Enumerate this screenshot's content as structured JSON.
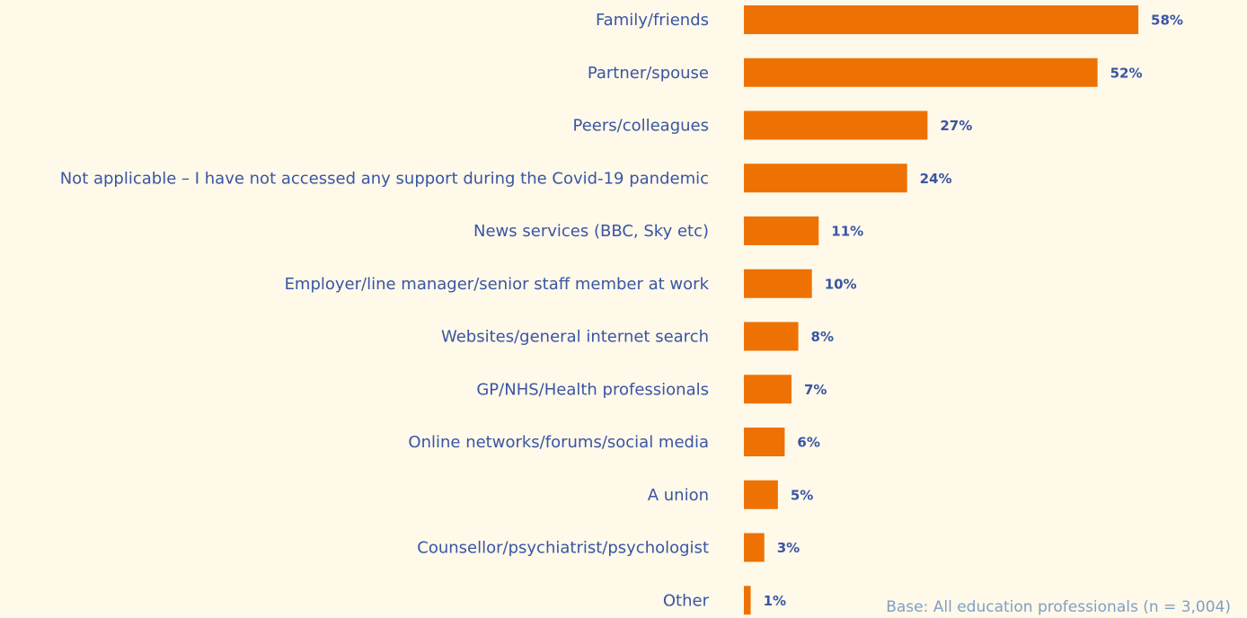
{
  "chart_data": {
    "type": "bar",
    "orientation": "horizontal",
    "categories": [
      "Family/friends",
      "Partner/spouse",
      "Peers/colleagues",
      "Not applicable – I have not accessed any support during the Covid-19 pandemic",
      "News services (BBC, Sky etc)",
      "Employer/line manager/senior staff member at work",
      "Websites/general internet search",
      "GP/NHS/Health professionals",
      "Online networks/forums/social media",
      "A union",
      "Counsellor/psychiatrist/psychologist",
      "Other"
    ],
    "values": [
      58,
      52,
      27,
      24,
      11,
      10,
      8,
      7,
      6,
      5,
      3,
      1
    ],
    "value_labels": [
      "58%",
      "52%",
      "27%",
      "24%",
      "11%",
      "10%",
      "8%",
      "7%",
      "6%",
      "5%",
      "3%",
      "1%"
    ],
    "color": "#ee7203",
    "note": "Base: All education professionals (n = 3,004)"
  }
}
